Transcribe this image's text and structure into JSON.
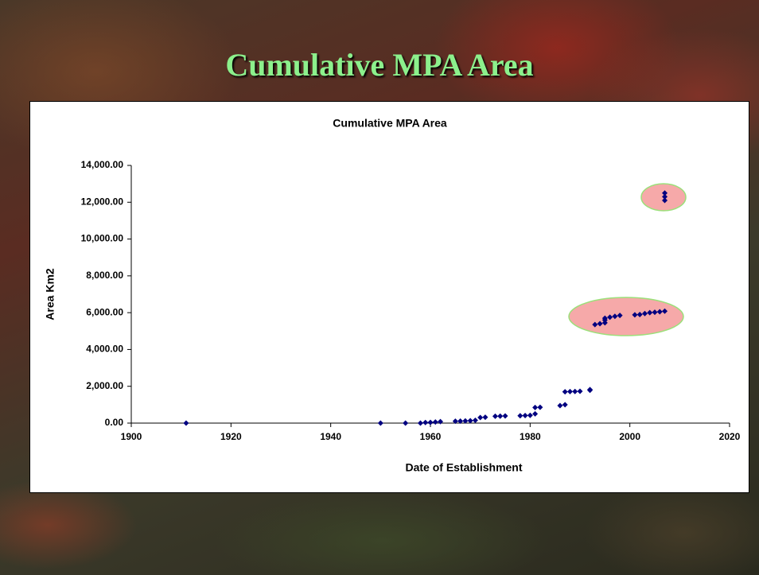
{
  "slide": {
    "title": "Cumulative MPA Area"
  },
  "chart_data": {
    "type": "scatter",
    "title": "Cumulative MPA Area",
    "x_label": "Date of Establishment",
    "y_label": "Area Km2",
    "color": "#000080",
    "x": [
      1911,
      1950,
      1955,
      1958,
      1959,
      1960,
      1961,
      1962,
      1965,
      1966,
      1967,
      1968,
      1969,
      1970,
      1971,
      1973,
      1974,
      1975,
      1978,
      1979,
      1980,
      1981,
      1981,
      1982,
      1986,
      1987,
      1987,
      1988,
      1989,
      1990,
      1992,
      1992,
      1993,
      1994,
      1995,
      1995,
      1995,
      1996,
      1997,
      1998,
      2001,
      2002,
      2003,
      2004,
      2005,
      2006,
      2007,
      2007,
      2007,
      2007
    ],
    "values": [
      0,
      0,
      0,
      0,
      30,
      40,
      60,
      80,
      100,
      110,
      120,
      130,
      150,
      300,
      320,
      370,
      380,
      390,
      400,
      410,
      420,
      500,
      850,
      860,
      950,
      1000,
      1700,
      1710,
      1720,
      1730,
      1780,
      1820,
      5350,
      5400,
      5450,
      5600,
      5700,
      5750,
      5800,
      5850,
      5880,
      5900,
      5950,
      6000,
      6020,
      6050,
      6080,
      12100,
      12300,
      12500
    ],
    "xlim": [
      1900,
      2020
    ],
    "xticks": [
      1900,
      1920,
      1940,
      1960,
      1980,
      2000,
      2020
    ],
    "ylim": [
      0,
      14000
    ],
    "yticks": [
      {
        "value": 0,
        "label": "0.00"
      },
      {
        "value": 2000,
        "label": "2,000.00"
      },
      {
        "value": 4000,
        "label": "4,000.00"
      },
      {
        "value": 6000,
        "label": "6,000.00"
      },
      {
        "value": 8000,
        "label": "8,000.00"
      },
      {
        "value": 10000,
        "label": "10,000.00"
      },
      {
        "value": 12000,
        "label": "12,000.00"
      },
      {
        "value": 14000,
        "label": "14,000.00"
      }
    ]
  }
}
